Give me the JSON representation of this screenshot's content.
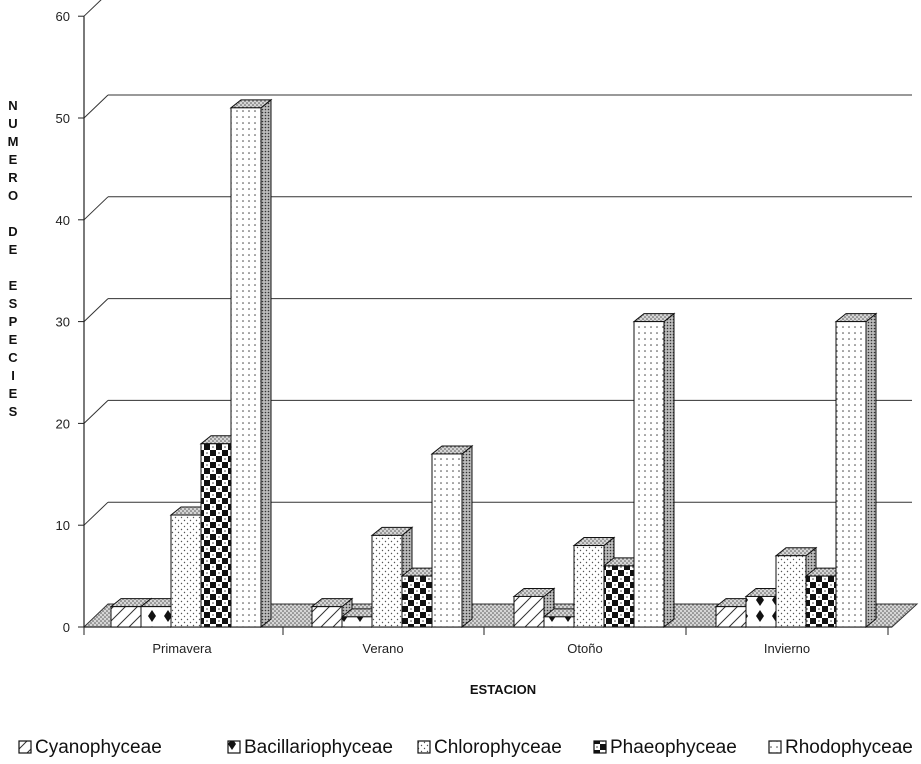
{
  "chart_data": {
    "type": "bar",
    "style": "3d-clustered",
    "title": "",
    "xlabel": "ESTACION",
    "ylabel": "NUMERO DE ESPECIES",
    "ylim": [
      0,
      60
    ],
    "yticks": [
      0,
      10,
      20,
      30,
      40,
      50,
      60
    ],
    "grid": true,
    "legend_position": "bottom",
    "categories": [
      "Primavera",
      "Verano",
      "Otoño",
      "Invierno"
    ],
    "series": [
      {
        "name": "Cyanophyceae",
        "values": [
          2,
          2,
          3,
          2
        ]
      },
      {
        "name": "Bacillariophyceae",
        "values": [
          2,
          1,
          1,
          3
        ]
      },
      {
        "name": "Chlorophyceae",
        "values": [
          11,
          9,
          8,
          7
        ]
      },
      {
        "name": "Phaeophyceae",
        "values": [
          18,
          5,
          6,
          5
        ]
      },
      {
        "name": "Rhodophyceae",
        "values": [
          51,
          17,
          30,
          30
        ]
      }
    ]
  }
}
